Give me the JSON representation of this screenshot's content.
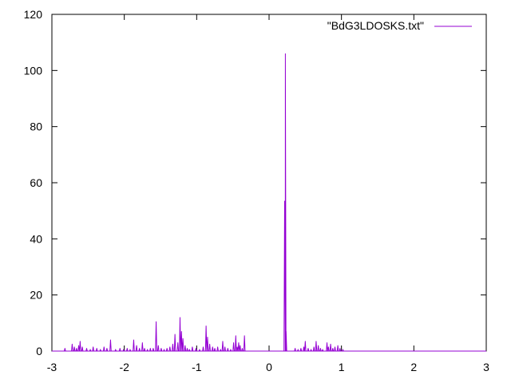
{
  "chart_data": {
    "type": "line",
    "title": "",
    "xlabel": "",
    "ylabel": "",
    "xlim": [
      -3,
      3
    ],
    "ylim": [
      0,
      120
    ],
    "xticks": [
      -3,
      -2,
      -1,
      0,
      1,
      2,
      3
    ],
    "yticks": [
      0,
      20,
      40,
      60,
      80,
      100,
      120
    ],
    "grid": false,
    "legend_position": "top-right",
    "series": [
      {
        "name": "\"BdG3LDOSKS.txt\"",
        "color": "#9400d3",
        "x": [
          -2.82,
          -2.72,
          -2.69,
          -2.66,
          -2.63,
          -2.61,
          -2.58,
          -2.52,
          -2.47,
          -2.43,
          -2.38,
          -2.33,
          -2.28,
          -2.24,
          -2.19,
          -2.12,
          -2.06,
          -2.01,
          -1.96,
          -1.92,
          -1.87,
          -1.83,
          -1.79,
          -1.75,
          -1.72,
          -1.68,
          -1.64,
          -1.6,
          -1.56,
          -1.53,
          -1.49,
          -1.45,
          -1.41,
          -1.37,
          -1.33,
          -1.3,
          -1.26,
          -1.23,
          -1.21,
          -1.19,
          -1.16,
          -1.13,
          -1.1,
          -1.06,
          -1.01,
          -0.96,
          -0.91,
          -0.87,
          -0.85,
          -0.82,
          -0.78,
          -0.75,
          -0.71,
          -0.67,
          -0.64,
          -0.61,
          -0.57,
          -0.53,
          -0.49,
          -0.46,
          -0.44,
          -0.42,
          -0.4,
          -0.37,
          -0.34,
          0.215,
          0.225,
          0.235,
          0.36,
          0.4,
          0.44,
          0.48,
          0.5,
          0.54,
          0.58,
          0.62,
          0.65,
          0.68,
          0.71,
          0.74,
          0.8,
          0.82,
          0.85,
          0.88,
          0.91,
          0.95,
          0.98,
          1.02
        ],
        "y": [
          1,
          2.5,
          1.5,
          1,
          2,
          3.5,
          1.5,
          1,
          0.5,
          1.5,
          1,
          0.5,
          1.5,
          1,
          4,
          0.5,
          1,
          0.5,
          1,
          0.5,
          4,
          2,
          1,
          3,
          1,
          0.5,
          1,
          1,
          10.5,
          2,
          1,
          0.5,
          1,
          1.5,
          2.5,
          6,
          3,
          12,
          7,
          4.5,
          2,
          1,
          0.5,
          1.5,
          1,
          0.5,
          1.5,
          9,
          5,
          2.5,
          1.5,
          1,
          1.5,
          0.5,
          3.5,
          1.5,
          1,
          0.5,
          3,
          5.5,
          1.5,
          3,
          2,
          1,
          5.5,
          53.5,
          106,
          7,
          1,
          0.5,
          1,
          1.5,
          3.5,
          1,
          0.5,
          1.5,
          3.5,
          2,
          1,
          0.5,
          3,
          1.5,
          2.5,
          1,
          1.5,
          2,
          1,
          0.5
        ]
      }
    ]
  }
}
